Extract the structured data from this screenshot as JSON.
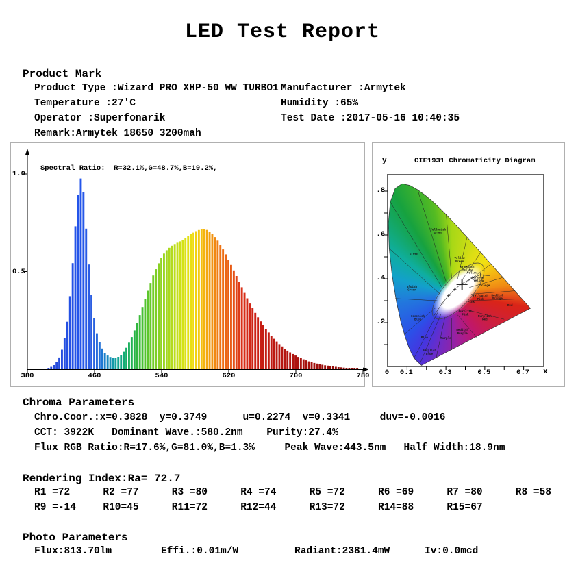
{
  "title": "LED Test Report",
  "product": {
    "heading": "Product Mark",
    "rows": [
      {
        "left": "Product Type :Wizard PRO XHP-50 WW TURBO1",
        "right": "Manufacturer :Armytek"
      },
      {
        "left": "Temperature :27'C",
        "right": "Humidity :65%"
      },
      {
        "left": "Operator :Superfonarik",
        "right": "Test Date :2017-05-16 10:40:35"
      },
      {
        "left": "Remark:Armytek 18650 3200mah",
        "right": ""
      }
    ]
  },
  "spectrum_panel": {
    "annotation": "Spectral Ratio:  R=32.1%,G=48.7%,B=19.2%,",
    "y_ticks": [
      {
        "label": "1.0",
        "v": 1.0
      },
      {
        "label": "0.5",
        "v": 0.5
      }
    ],
    "x_ticks": [
      {
        "label": "380",
        "v": 380
      },
      {
        "label": "460",
        "v": 460
      },
      {
        "label": "540",
        "v": 540
      },
      {
        "label": "620",
        "v": 620
      },
      {
        "label": "700",
        "v": 700
      },
      {
        "label": "780",
        "v": 780
      }
    ]
  },
  "cie_panel": {
    "title": "CIE1931 Chromaticity Diagram",
    "y_axis_label": "y",
    "x_axis_label": "x",
    "y_ticks": [
      {
        "label": ".8",
        "v": 0.8
      },
      {
        "label": ".6",
        "v": 0.6
      },
      {
        "label": ".4",
        "v": 0.4
      },
      {
        "label": ".2",
        "v": 0.2
      }
    ],
    "x_ticks": [
      {
        "label": "0",
        "v": 0
      },
      {
        "label": "0.1",
        "v": 0.1
      },
      {
        "label": "0.3",
        "v": 0.3
      },
      {
        "label": "0.5",
        "v": 0.5
      },
      {
        "label": "0.7",
        "v": 0.7
      }
    ]
  },
  "chroma": {
    "heading": "Chroma Parameters",
    "lines": [
      "Chro.Coor.:x=0.3828  y=0.3749      u=0.2274  v=0.3341     duv=-0.0016",
      "CCT: 3922K   Dominant Wave.:580.2nm    Purity:27.4%",
      "Flux RGB Ratio:R=17.6%,G=81.0%,B=1.3%     Peak Wave:443.5nm   Half Width:18.9nm"
    ]
  },
  "rendering": {
    "heading": "Rendering Index:Ra= 72.7",
    "row1": [
      "R1 =72",
      "R2 =77",
      "R3 =80",
      "R4 =74",
      "R5 =72",
      "R6 =69",
      "R7 =80",
      "R8 =58"
    ],
    "row2": [
      "R9 =-14",
      "R10=45",
      "R11=72",
      "R12=44",
      "R13=72",
      "R14=88",
      "R15=67"
    ]
  },
  "photo": {
    "heading": "Photo Parameters",
    "values": [
      "Flux:813.70lm",
      "Effi.:0.01m/W",
      "Radiant:2381.4mW",
      "Iv:0.0mcd"
    ]
  },
  "chart_data": [
    {
      "type": "area",
      "title": "Spectral Ratio:  R=32.1%,G=48.7%,B=19.2%,",
      "xlim": [
        380,
        780
      ],
      "ylim": [
        0,
        1.0
      ],
      "x_ticks": [
        380,
        460,
        540,
        620,
        700,
        780
      ],
      "y_ticks": [
        1.0,
        0.5
      ],
      "peak_wave_nm": 443.5,
      "half_width_nm": 18.9,
      "samples": [
        [
          400,
          0.0
        ],
        [
          405,
          0.005
        ],
        [
          410,
          0.015
        ],
        [
          414,
          0.03
        ],
        [
          418,
          0.06
        ],
        [
          422,
          0.11
        ],
        [
          426,
          0.19
        ],
        [
          429,
          0.29
        ],
        [
          432,
          0.43
        ],
        [
          435,
          0.6
        ],
        [
          438,
          0.78
        ],
        [
          441,
          0.92
        ],
        [
          443,
          0.98
        ],
        [
          445,
          0.97
        ],
        [
          447,
          0.9
        ],
        [
          449,
          0.78
        ],
        [
          452,
          0.6
        ],
        [
          455,
          0.44
        ],
        [
          458,
          0.31
        ],
        [
          461,
          0.22
        ],
        [
          464,
          0.16
        ],
        [
          468,
          0.115
        ],
        [
          472,
          0.085
        ],
        [
          476,
          0.068
        ],
        [
          480,
          0.06
        ],
        [
          484,
          0.058
        ],
        [
          488,
          0.062
        ],
        [
          492,
          0.075
        ],
        [
          496,
          0.095
        ],
        [
          500,
          0.125
        ],
        [
          505,
          0.17
        ],
        [
          510,
          0.225
        ],
        [
          515,
          0.29
        ],
        [
          520,
          0.355
        ],
        [
          525,
          0.42
        ],
        [
          530,
          0.48
        ],
        [
          535,
          0.53
        ],
        [
          540,
          0.575
        ],
        [
          545,
          0.605
        ],
        [
          550,
          0.625
        ],
        [
          555,
          0.64
        ],
        [
          560,
          0.65
        ],
        [
          565,
          0.662
        ],
        [
          570,
          0.676
        ],
        [
          575,
          0.692
        ],
        [
          580,
          0.705
        ],
        [
          585,
          0.714
        ],
        [
          590,
          0.718
        ],
        [
          595,
          0.712
        ],
        [
          600,
          0.695
        ],
        [
          605,
          0.67
        ],
        [
          610,
          0.638
        ],
        [
          615,
          0.6
        ],
        [
          620,
          0.558
        ],
        [
          625,
          0.515
        ],
        [
          630,
          0.47
        ],
        [
          635,
          0.425
        ],
        [
          640,
          0.38
        ],
        [
          645,
          0.338
        ],
        [
          650,
          0.3
        ],
        [
          655,
          0.264
        ],
        [
          660,
          0.232
        ],
        [
          665,
          0.202
        ],
        [
          670,
          0.175
        ],
        [
          675,
          0.151
        ],
        [
          680,
          0.13
        ],
        [
          685,
          0.111
        ],
        [
          690,
          0.095
        ],
        [
          695,
          0.081
        ],
        [
          700,
          0.069
        ],
        [
          705,
          0.058
        ],
        [
          710,
          0.049
        ],
        [
          715,
          0.041
        ],
        [
          720,
          0.034
        ],
        [
          725,
          0.029
        ],
        [
          730,
          0.024
        ],
        [
          735,
          0.02
        ],
        [
          740,
          0.017
        ],
        [
          745,
          0.014
        ],
        [
          750,
          0.011
        ],
        [
          755,
          0.009
        ],
        [
          760,
          0.007
        ],
        [
          765,
          0.006
        ],
        [
          770,
          0.005
        ],
        [
          775,
          0.004
        ],
        [
          780,
          0.003
        ]
      ]
    },
    {
      "type": "scatter",
      "title": "CIE1931 Chromaticity Diagram",
      "xlabel": "x",
      "ylabel": "y",
      "xlim": [
        0,
        0.8
      ],
      "ylim": [
        0,
        0.875
      ],
      "x_ticks": [
        0,
        0.1,
        0.3,
        0.5,
        0.7
      ],
      "y_ticks": [
        0.2,
        0.4,
        0.6,
        0.8
      ],
      "marker": {
        "x": 0.3828,
        "y": 0.3749
      },
      "planckian_points": [
        [
          0.24,
          0.234
        ],
        [
          0.281,
          0.288
        ],
        [
          0.313,
          0.323
        ],
        [
          0.345,
          0.352
        ],
        [
          0.381,
          0.377
        ],
        [
          0.437,
          0.404
        ],
        [
          0.478,
          0.418
        ],
        [
          0.527,
          0.413
        ]
      ],
      "region_labels": [
        {
          "lines": [
            "Yellowish",
            "Green"
          ],
          "x": 0.26,
          "y": 0.62
        },
        {
          "lines": [
            "Green"
          ],
          "x": 0.135,
          "y": 0.51
        },
        {
          "lines": [
            "Yellow",
            "Green"
          ],
          "x": 0.37,
          "y": 0.49
        },
        {
          "lines": [
            "Greenish",
            "Yellow"
          ],
          "x": 0.41,
          "y": 0.45
        },
        {
          "lines": [
            "Yellow"
          ],
          "x": 0.435,
          "y": 0.424
        },
        {
          "lines": [
            "Orange",
            "Yellow"
          ],
          "x": 0.468,
          "y": 0.402
        },
        {
          "lines": [
            "Orange"
          ],
          "x": 0.5,
          "y": 0.365
        },
        {
          "lines": [
            "Yellowish",
            "Pink"
          ],
          "x": 0.478,
          "y": 0.318
        },
        {
          "lines": [
            "Reddish",
            "Orange"
          ],
          "x": 0.565,
          "y": 0.32
        },
        {
          "lines": [
            "Red"
          ],
          "x": 0.63,
          "y": 0.275
        },
        {
          "lines": [
            "Pink"
          ],
          "x": 0.43,
          "y": 0.29
        },
        {
          "lines": [
            "Purplish",
            "Pink"
          ],
          "x": 0.4,
          "y": 0.247
        },
        {
          "lines": [
            "Purplish",
            "Red"
          ],
          "x": 0.5,
          "y": 0.225
        },
        {
          "lines": [
            "Reddish",
            "Purple"
          ],
          "x": 0.385,
          "y": 0.162
        },
        {
          "lines": [
            "Purple"
          ],
          "x": 0.3,
          "y": 0.125
        },
        {
          "lines": [
            "Blue"
          ],
          "x": 0.19,
          "y": 0.128
        },
        {
          "lines": [
            "Purplish",
            "Blue"
          ],
          "x": 0.215,
          "y": 0.068
        },
        {
          "lines": [
            "Greenish",
            "Blue"
          ],
          "x": 0.155,
          "y": 0.225
        },
        {
          "lines": [
            "Bluish",
            "Green"
          ],
          "x": 0.125,
          "y": 0.36
        }
      ]
    }
  ]
}
